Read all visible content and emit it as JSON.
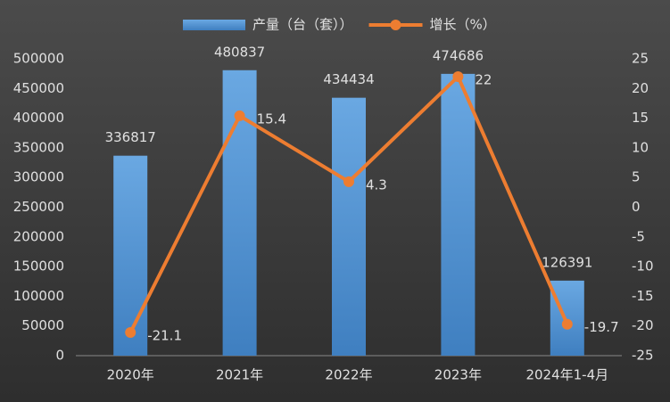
{
  "chart_data": {
    "type": "combo",
    "categories": [
      "2020年",
      "2021年",
      "2022年",
      "2023年",
      "2024年1-4月"
    ],
    "series": [
      {
        "name": "产量（台（套））",
        "type": "bar",
        "color": "#5b9bd5",
        "values": [
          336817,
          480837,
          434434,
          474686,
          126391
        ]
      },
      {
        "name": "增长（%）",
        "type": "line",
        "axis": "y2",
        "color": "#ed7d31",
        "values": [
          -21.1,
          15.4,
          4.3,
          22,
          -19.7
        ]
      }
    ],
    "ylim": [
      0,
      500000
    ],
    "yticks": [
      0,
      50000,
      100000,
      150000,
      200000,
      250000,
      300000,
      350000,
      400000,
      450000,
      500000
    ],
    "y2lim": [
      -25,
      25
    ],
    "y2ticks": [
      -25,
      -20,
      -15,
      -10,
      -5,
      0,
      5,
      10,
      15,
      20,
      25
    ],
    "legend": "top"
  }
}
